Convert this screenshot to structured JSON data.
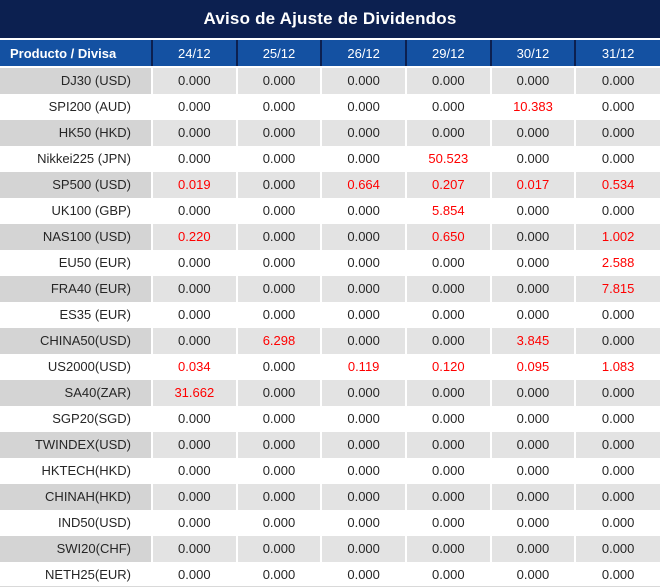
{
  "title": "Aviso de Ajuste de Dividendos",
  "colors": {
    "title_bg": "#0C2050",
    "header_bg": "#1451A2",
    "header_text": "#FFFFFF",
    "stripe_label_bg": "#D4D4D4",
    "stripe_value_bg": "#E3E3E3",
    "value_zero_text": "#262626",
    "value_nonzero_text": "#FF0000"
  },
  "table": {
    "product_header": "Producto / Divisa",
    "date_headers": [
      "24/12",
      "25/12",
      "26/12",
      "29/12",
      "30/12",
      "31/12"
    ],
    "rows": [
      {
        "product": "DJ30 (USD)",
        "values": [
          "0.000",
          "0.000",
          "0.000",
          "0.000",
          "0.000",
          "0.000"
        ]
      },
      {
        "product": "SPI200 (AUD)",
        "values": [
          "0.000",
          "0.000",
          "0.000",
          "0.000",
          "10.383",
          "0.000"
        ]
      },
      {
        "product": "HK50 (HKD)",
        "values": [
          "0.000",
          "0.000",
          "0.000",
          "0.000",
          "0.000",
          "0.000"
        ]
      },
      {
        "product": "Nikkei225 (JPN)",
        "values": [
          "0.000",
          "0.000",
          "0.000",
          "50.523",
          "0.000",
          "0.000"
        ]
      },
      {
        "product": "SP500 (USD)",
        "values": [
          "0.019",
          "0.000",
          "0.664",
          "0.207",
          "0.017",
          "0.534"
        ]
      },
      {
        "product": "UK100 (GBP)",
        "values": [
          "0.000",
          "0.000",
          "0.000",
          "5.854",
          "0.000",
          "0.000"
        ]
      },
      {
        "product": "NAS100 (USD)",
        "values": [
          "0.220",
          "0.000",
          "0.000",
          "0.650",
          "0.000",
          "1.002"
        ]
      },
      {
        "product": "EU50 (EUR)",
        "values": [
          "0.000",
          "0.000",
          "0.000",
          "0.000",
          "0.000",
          "2.588"
        ]
      },
      {
        "product": "FRA40 (EUR)",
        "values": [
          "0.000",
          "0.000",
          "0.000",
          "0.000",
          "0.000",
          "7.815"
        ]
      },
      {
        "product": "ES35 (EUR)",
        "values": [
          "0.000",
          "0.000",
          "0.000",
          "0.000",
          "0.000",
          "0.000"
        ]
      },
      {
        "product": "CHINA50(USD)",
        "values": [
          "0.000",
          "6.298",
          "0.000",
          "0.000",
          "3.845",
          "0.000"
        ]
      },
      {
        "product": "US2000(USD)",
        "values": [
          "0.034",
          "0.000",
          "0.119",
          "0.120",
          "0.095",
          "1.083"
        ]
      },
      {
        "product": "SA40(ZAR)",
        "values": [
          "31.662",
          "0.000",
          "0.000",
          "0.000",
          "0.000",
          "0.000"
        ]
      },
      {
        "product": "SGP20(SGD)",
        "values": [
          "0.000",
          "0.000",
          "0.000",
          "0.000",
          "0.000",
          "0.000"
        ]
      },
      {
        "product": "TWINDEX(USD)",
        "values": [
          "0.000",
          "0.000",
          "0.000",
          "0.000",
          "0.000",
          "0.000"
        ]
      },
      {
        "product": "HKTECH(HKD)",
        "values": [
          "0.000",
          "0.000",
          "0.000",
          "0.000",
          "0.000",
          "0.000"
        ]
      },
      {
        "product": "CHINAH(HKD)",
        "values": [
          "0.000",
          "0.000",
          "0.000",
          "0.000",
          "0.000",
          "0.000"
        ]
      },
      {
        "product": "IND50(USD)",
        "values": [
          "0.000",
          "0.000",
          "0.000",
          "0.000",
          "0.000",
          "0.000"
        ]
      },
      {
        "product": "SWI20(CHF)",
        "values": [
          "0.000",
          "0.000",
          "0.000",
          "0.000",
          "0.000",
          "0.000"
        ]
      },
      {
        "product": "NETH25(EUR)",
        "values": [
          "0.000",
          "0.000",
          "0.000",
          "0.000",
          "0.000",
          "0.000"
        ]
      }
    ]
  }
}
